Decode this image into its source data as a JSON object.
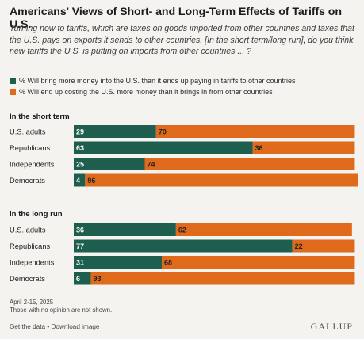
{
  "title": "Americans' Views of Short- and Long-Term Effects of Tariffs on U.S.",
  "subtitle": "Turning now to tariffs, which are taxes on goods imported from other countries and taxes that the U.S. pays on exports it sends to other countries. [In the short term/long run], do you think new tariffs the U.S. is putting on imports from other countries ... ?",
  "legend": [
    {
      "label": "% Will bring more money into the U.S. than it ends up paying in tariffs to other countries",
      "color": "#1d5e4f"
    },
    {
      "label": "% Will end up costing the U.S. more money than it brings in from other countries",
      "color": "#e06a1b"
    }
  ],
  "colors": {
    "green": "#1d5e4f",
    "orange": "#e06a1b"
  },
  "chart_data": {
    "type": "bar",
    "orientation": "horizontal",
    "stacked": true,
    "xlim": [
      0,
      100
    ],
    "groups": [
      {
        "label": "In the short term",
        "categories": [
          "U.S. adults",
          "Republicans",
          "Independents",
          "Democrats"
        ],
        "series": [
          {
            "name": "% Will bring more money into the U.S. than it ends up paying in tariffs to other countries",
            "values": [
              29,
              63,
              25,
              4
            ]
          },
          {
            "name": "% Will end up costing the U.S. more money than it brings in from other countries",
            "values": [
              70,
              36,
              74,
              96
            ]
          }
        ]
      },
      {
        "label": "In the long run",
        "categories": [
          "U.S. adults",
          "Republicans",
          "Independents",
          "Democrats"
        ],
        "series": [
          {
            "name": "% Will bring more money into the U.S. than it ends up paying in tariffs to other countries",
            "values": [
              36,
              77,
              31,
              6
            ]
          },
          {
            "name": "% Will end up costing the U.S. more money than it brings in from other countries",
            "values": [
              62,
              22,
              68,
              93
            ]
          }
        ]
      }
    ]
  },
  "notes": {
    "date": "April 2-15, 2025",
    "no_opinion": "Those with no opinion are not shown."
  },
  "footer": {
    "get_data": "Get the data",
    "separator": " • ",
    "download": "Download image",
    "brand": "GALLUP"
  }
}
